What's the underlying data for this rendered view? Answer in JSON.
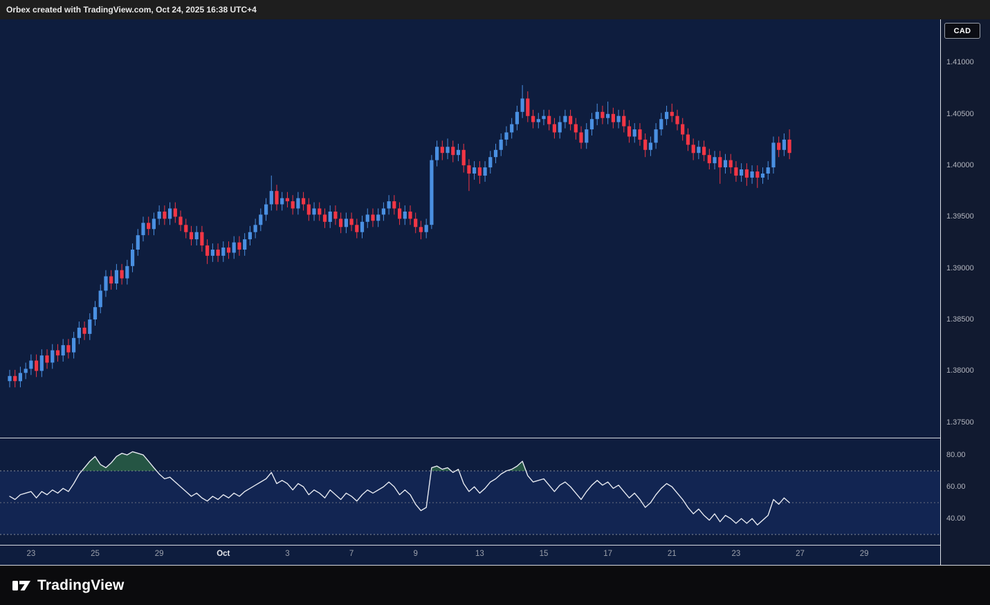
{
  "header": {
    "title": "Orbex created with TradingView.com, Oct 24, 2025 16:38 UTC+4"
  },
  "symbol_badge": "CAD",
  "footer": {
    "brand": "TradingView"
  },
  "colors": {
    "chart_bg": "#0e1d3e",
    "axis_bg": "#111a30",
    "candle_up": "#4a90e2",
    "candle_down": "#f23645",
    "rsi_line": "#e6e9f0",
    "rsi_level": "#8a8f9b",
    "rsi_mid": "#6a7080",
    "rsi_band": "rgba(40,80,180,0.18)",
    "rsi_overbought_fill": "rgba(76,175,80,0.38)",
    "separator": "#d7dae0",
    "axis_text": "#b2b5be"
  },
  "chart_data": [
    {
      "id": "price",
      "type": "candlestick",
      "title": "USD/CAD 4h candlestick pane",
      "ylim": [
        1.3735,
        1.4142
      ],
      "x_start": 14,
      "x_step": 7.72,
      "bar_width": 5.2,
      "ticks": [
        {
          "v": 1.41,
          "label": "1.41000"
        },
        {
          "v": 1.405,
          "label": "1.40500"
        },
        {
          "v": 1.4,
          "label": "1.40000"
        },
        {
          "v": 1.395,
          "label": "1.39500"
        },
        {
          "v": 1.39,
          "label": "1.39000"
        },
        {
          "v": 1.385,
          "label": "1.38500"
        },
        {
          "v": 1.38,
          "label": "1.38000"
        },
        {
          "v": 1.375,
          "label": "1.37500"
        }
      ],
      "time_ticks": [
        {
          "i": 4,
          "label": "23"
        },
        {
          "i": 16,
          "label": "25"
        },
        {
          "i": 28,
          "label": "29"
        },
        {
          "i": 40,
          "label": "Oct",
          "month": true
        },
        {
          "i": 52,
          "label": "3"
        },
        {
          "i": 64,
          "label": "7"
        },
        {
          "i": 76,
          "label": "9"
        },
        {
          "i": 88,
          "label": "13"
        },
        {
          "i": 100,
          "label": "15"
        },
        {
          "i": 112,
          "label": "17"
        },
        {
          "i": 124,
          "label": "21"
        },
        {
          "i": 136,
          "label": "23"
        },
        {
          "i": 148,
          "label": "27"
        },
        {
          "i": 160,
          "label": "29"
        }
      ],
      "candles": [
        [
          1.379,
          1.3801,
          1.3784,
          1.3795
        ],
        [
          1.3795,
          1.3801,
          1.3784,
          1.379
        ],
        [
          1.379,
          1.3804,
          1.3784,
          1.3798
        ],
        [
          1.3798,
          1.3808,
          1.3792,
          1.3802
        ],
        [
          1.3802,
          1.3816,
          1.3796,
          1.381
        ],
        [
          1.381,
          1.3816,
          1.3794,
          1.38
        ],
        [
          1.38,
          1.3821,
          1.3794,
          1.3815
        ],
        [
          1.3815,
          1.3821,
          1.3802,
          1.3808
        ],
        [
          1.3808,
          1.3826,
          1.3802,
          1.382
        ],
        [
          1.382,
          1.3826,
          1.3809,
          1.3815
        ],
        [
          1.3815,
          1.3831,
          1.3809,
          1.3825
        ],
        [
          1.3825,
          1.3831,
          1.3812,
          1.3818
        ],
        [
          1.3818,
          1.3838,
          1.3812,
          1.3832
        ],
        [
          1.3832,
          1.3848,
          1.3826,
          1.3842
        ],
        [
          1.3842,
          1.3848,
          1.383,
          1.3836
        ],
        [
          1.3836,
          1.3856,
          1.383,
          1.385
        ],
        [
          1.385,
          1.3868,
          1.3844,
          1.3862
        ],
        [
          1.3862,
          1.3884,
          1.3856,
          1.3878
        ],
        [
          1.3878,
          1.3898,
          1.3872,
          1.3892
        ],
        [
          1.3892,
          1.3898,
          1.3879,
          1.3885
        ],
        [
          1.3885,
          1.3904,
          1.3879,
          1.3898
        ],
        [
          1.3898,
          1.3904,
          1.3884,
          1.389
        ],
        [
          1.389,
          1.3908,
          1.3884,
          1.3902
        ],
        [
          1.3902,
          1.3924,
          1.3896,
          1.3918
        ],
        [
          1.3918,
          1.3938,
          1.3912,
          1.3932
        ],
        [
          1.3932,
          1.395,
          1.3926,
          1.3944
        ],
        [
          1.3944,
          1.395,
          1.3932,
          1.3938
        ],
        [
          1.3938,
          1.3954,
          1.3932,
          1.3948
        ],
        [
          1.3948,
          1.3961,
          1.3942,
          1.3955
        ],
        [
          1.3955,
          1.3961,
          1.3942,
          1.3948
        ],
        [
          1.3948,
          1.3964,
          1.3942,
          1.3958
        ],
        [
          1.3958,
          1.3964,
          1.3944,
          1.395
        ],
        [
          1.395,
          1.3956,
          1.3936,
          1.3942
        ],
        [
          1.3942,
          1.3948,
          1.3929,
          1.3935
        ],
        [
          1.3935,
          1.3941,
          1.3922,
          1.3928
        ],
        [
          1.3928,
          1.3941,
          1.3922,
          1.3935
        ],
        [
          1.3935,
          1.3941,
          1.3916,
          1.3922
        ],
        [
          1.3922,
          1.3928,
          1.3904,
          1.3912
        ],
        [
          1.3912,
          1.3924,
          1.3906,
          1.3918
        ],
        [
          1.3918,
          1.3924,
          1.3906,
          1.3912
        ],
        [
          1.3912,
          1.3926,
          1.3906,
          1.392
        ],
        [
          1.392,
          1.3926,
          1.3909,
          1.3915
        ],
        [
          1.3915,
          1.3931,
          1.3909,
          1.3925
        ],
        [
          1.3925,
          1.3931,
          1.3912,
          1.3918
        ],
        [
          1.3918,
          1.3934,
          1.3912,
          1.3928
        ],
        [
          1.3928,
          1.3941,
          1.3922,
          1.3935
        ],
        [
          1.3935,
          1.3948,
          1.3929,
          1.3942
        ],
        [
          1.3942,
          1.3958,
          1.3936,
          1.3952
        ],
        [
          1.3952,
          1.3968,
          1.3946,
          1.3962
        ],
        [
          1.3962,
          1.399,
          1.3956,
          1.3975
        ],
        [
          1.3975,
          1.3981,
          1.3956,
          1.3962
        ],
        [
          1.3962,
          1.3974,
          1.3956,
          1.3968
        ],
        [
          1.3968,
          1.3974,
          1.3959,
          1.3965
        ],
        [
          1.3965,
          1.3971,
          1.3952,
          1.3958
        ],
        [
          1.3958,
          1.3974,
          1.3952,
          1.3968
        ],
        [
          1.3968,
          1.3974,
          1.3956,
          1.3962
        ],
        [
          1.3962,
          1.3968,
          1.3946,
          1.3952
        ],
        [
          1.3952,
          1.3964,
          1.3946,
          1.3958
        ],
        [
          1.3958,
          1.3964,
          1.3946,
          1.3952
        ],
        [
          1.3952,
          1.3958,
          1.3939,
          1.3945
        ],
        [
          1.3945,
          1.3961,
          1.3939,
          1.3955
        ],
        [
          1.3955,
          1.3961,
          1.3942,
          1.3948
        ],
        [
          1.3948,
          1.3954,
          1.3934,
          1.394
        ],
        [
          1.394,
          1.3954,
          1.3934,
          1.3948
        ],
        [
          1.3948,
          1.3954,
          1.3936,
          1.3942
        ],
        [
          1.3942,
          1.3948,
          1.3929,
          1.3935
        ],
        [
          1.3935,
          1.3951,
          1.3929,
          1.3945
        ],
        [
          1.3945,
          1.3958,
          1.3939,
          1.3952
        ],
        [
          1.3952,
          1.3958,
          1.394,
          1.3946
        ],
        [
          1.3946,
          1.3958,
          1.394,
          1.3952
        ],
        [
          1.3952,
          1.3964,
          1.3946,
          1.3958
        ],
        [
          1.3958,
          1.3971,
          1.3952,
          1.3965
        ],
        [
          1.3965,
          1.3971,
          1.3952,
          1.3958
        ],
        [
          1.3958,
          1.3964,
          1.3942,
          1.3948
        ],
        [
          1.3948,
          1.3961,
          1.3942,
          1.3955
        ],
        [
          1.3955,
          1.3961,
          1.3942,
          1.3948
        ],
        [
          1.3948,
          1.3954,
          1.3934,
          1.394
        ],
        [
          1.394,
          1.3946,
          1.3928,
          1.3935
        ],
        [
          1.3935,
          1.3948,
          1.3929,
          1.3942
        ],
        [
          1.3942,
          1.401,
          1.3938,
          1.4005
        ],
        [
          1.4005,
          1.4024,
          1.3999,
          1.4018
        ],
        [
          1.4018,
          1.4024,
          1.4005,
          1.4012
        ],
        [
          1.4012,
          1.4026,
          1.4006,
          1.4018
        ],
        [
          1.4018,
          1.4024,
          1.4003,
          1.401
        ],
        [
          1.401,
          1.4021,
          1.4004,
          1.4015
        ],
        [
          1.4015,
          1.4021,
          1.3993,
          1.4
        ],
        [
          1.4,
          1.4006,
          1.3975,
          1.3992
        ],
        [
          1.3992,
          1.4004,
          1.3986,
          1.3998
        ],
        [
          1.3998,
          1.4004,
          1.3982,
          1.399
        ],
        [
          1.399,
          1.4004,
          1.3984,
          1.3998
        ],
        [
          1.3998,
          1.4014,
          1.3992,
          1.4008
        ],
        [
          1.4008,
          1.4021,
          1.4002,
          1.4015
        ],
        [
          1.4015,
          1.4031,
          1.4009,
          1.4025
        ],
        [
          1.4025,
          1.4038,
          1.4019,
          1.4032
        ],
        [
          1.4032,
          1.4046,
          1.4026,
          1.404
        ],
        [
          1.404,
          1.4058,
          1.4034,
          1.4052
        ],
        [
          1.4052,
          1.4078,
          1.4046,
          1.4065
        ],
        [
          1.4065,
          1.4072,
          1.4042,
          1.4048
        ],
        [
          1.4048,
          1.4054,
          1.4036,
          1.4042
        ],
        [
          1.4042,
          1.4051,
          1.4036,
          1.4045
        ],
        [
          1.4045,
          1.4054,
          1.4039,
          1.4048
        ],
        [
          1.4048,
          1.4054,
          1.4034,
          1.404
        ],
        [
          1.404,
          1.4046,
          1.4026,
          1.4032
        ],
        [
          1.4032,
          1.4048,
          1.4026,
          1.4042
        ],
        [
          1.4042,
          1.4054,
          1.4036,
          1.4048
        ],
        [
          1.4048,
          1.4054,
          1.4034,
          1.404
        ],
        [
          1.404,
          1.4046,
          1.4025,
          1.4032
        ],
        [
          1.4032,
          1.4038,
          1.4016,
          1.4022
        ],
        [
          1.4022,
          1.4041,
          1.4016,
          1.4035
        ],
        [
          1.4035,
          1.4051,
          1.4029,
          1.4045
        ],
        [
          1.4045,
          1.406,
          1.4039,
          1.4052
        ],
        [
          1.4052,
          1.4058,
          1.404,
          1.4046
        ],
        [
          1.4046,
          1.4062,
          1.404,
          1.405
        ],
        [
          1.405,
          1.4056,
          1.4036,
          1.4042
        ],
        [
          1.4042,
          1.4054,
          1.4036,
          1.4048
        ],
        [
          1.4048,
          1.4054,
          1.4032,
          1.4038
        ],
        [
          1.4038,
          1.4044,
          1.4022,
          1.4028
        ],
        [
          1.4028,
          1.4041,
          1.4022,
          1.4035
        ],
        [
          1.4035,
          1.4041,
          1.4019,
          1.4025
        ],
        [
          1.4025,
          1.4031,
          1.4008,
          1.4015
        ],
        [
          1.4015,
          1.4028,
          1.4009,
          1.4022
        ],
        [
          1.4022,
          1.4041,
          1.4016,
          1.4035
        ],
        [
          1.4035,
          1.4051,
          1.4029,
          1.4045
        ],
        [
          1.4045,
          1.4058,
          1.4039,
          1.4052
        ],
        [
          1.4052,
          1.406,
          1.4042,
          1.4048
        ],
        [
          1.4048,
          1.4054,
          1.4034,
          1.404
        ],
        [
          1.404,
          1.4046,
          1.4024,
          1.403
        ],
        [
          1.403,
          1.4036,
          1.4014,
          1.402
        ],
        [
          1.402,
          1.4026,
          1.4005,
          1.4012
        ],
        [
          1.4012,
          1.4024,
          1.4006,
          1.4018
        ],
        [
          1.4018,
          1.4024,
          1.4004,
          1.401
        ],
        [
          1.401,
          1.4016,
          1.3996,
          1.4002
        ],
        [
          1.4002,
          1.4014,
          1.3996,
          1.4008
        ],
        [
          1.4008,
          1.4014,
          1.3982,
          1.3998
        ],
        [
          1.3998,
          1.4011,
          1.3992,
          1.4005
        ],
        [
          1.4005,
          1.4011,
          1.3992,
          1.3998
        ],
        [
          1.3998,
          1.4004,
          1.3984,
          1.399
        ],
        [
          1.399,
          1.4002,
          1.3984,
          1.3996
        ],
        [
          1.3996,
          1.4002,
          1.398,
          1.3988
        ],
        [
          1.3988,
          1.4,
          1.3982,
          1.3994
        ],
        [
          1.3994,
          1.4,
          1.3978,
          1.3988
        ],
        [
          1.3988,
          1.3998,
          1.3982,
          1.3992
        ],
        [
          1.3992,
          1.4004,
          1.3986,
          1.3998
        ],
        [
          1.3998,
          1.4028,
          1.3992,
          1.4022
        ],
        [
          1.4022,
          1.4028,
          1.4008,
          1.4015
        ],
        [
          1.4015,
          1.4031,
          1.4009,
          1.4025
        ],
        [
          1.4025,
          1.4035,
          1.4006,
          1.4012
        ]
      ]
    },
    {
      "id": "rsi",
      "type": "line",
      "title": "RSI pane",
      "ylim": [
        23.5,
        90.4
      ],
      "overbought": 70,
      "oversold": 30,
      "band": [
        30,
        70
      ],
      "levels": [
        {
          "v": 70
        },
        {
          "v": 50,
          "mid": true
        },
        {
          "v": 30
        }
      ],
      "ticks": [
        {
          "v": 80,
          "label": "80.00"
        },
        {
          "v": 60,
          "label": "60.00"
        },
        {
          "v": 40,
          "label": "40.00"
        }
      ],
      "values": [
        54,
        52,
        55,
        56,
        57,
        53,
        57,
        55,
        58,
        56,
        59,
        57,
        62,
        68,
        72,
        76,
        79,
        74,
        72,
        75,
        79,
        81,
        80,
        82,
        81,
        80,
        76,
        72,
        68,
        65,
        66,
        63,
        60,
        57,
        54,
        56,
        53,
        51,
        54,
        52,
        55,
        53,
        56,
        54,
        57,
        59,
        61,
        63,
        65,
        69,
        62,
        64,
        62,
        58,
        62,
        60,
        55,
        58,
        56,
        53,
        58,
        55,
        52,
        56,
        54,
        51,
        55,
        58,
        56,
        58,
        60,
        63,
        60,
        55,
        58,
        55,
        49,
        45,
        47,
        72,
        73,
        71,
        72,
        69,
        71,
        62,
        57,
        60,
        56,
        59,
        63,
        65,
        68,
        70,
        71,
        73,
        76,
        67,
        63,
        64,
        65,
        61,
        57,
        61,
        63,
        60,
        56,
        52,
        57,
        61,
        64,
        61,
        63,
        59,
        61,
        57,
        53,
        56,
        52,
        47,
        50,
        55,
        59,
        62,
        60,
        56,
        52,
        47,
        43,
        46,
        42,
        39,
        43,
        38,
        42,
        40,
        37,
        40,
        37,
        40,
        36,
        39,
        42,
        52,
        49,
        53,
        50
      ]
    }
  ]
}
